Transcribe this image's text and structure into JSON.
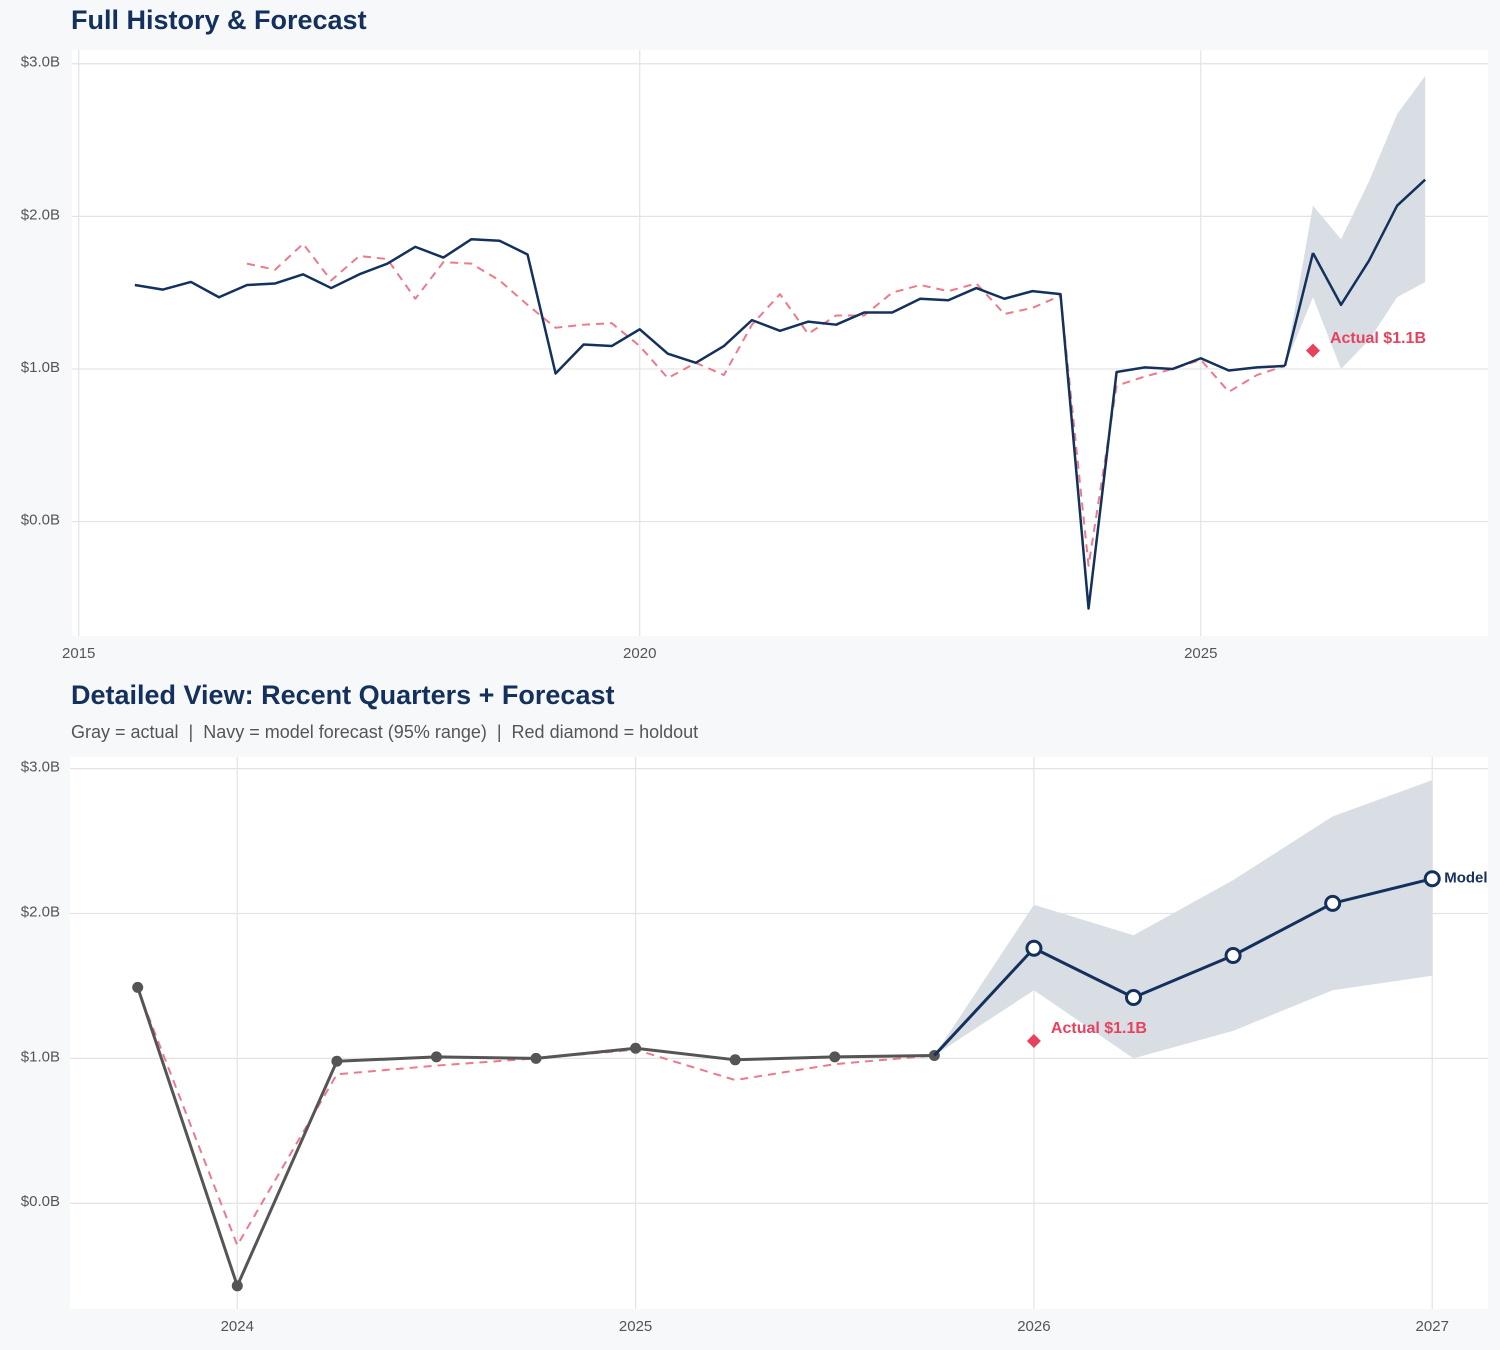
{
  "chart_data": [
    {
      "type": "line",
      "title": "Full History & Forecast",
      "xlim": [
        2014.94,
        2027.56
      ],
      "xticks": [
        2015,
        2020,
        2025
      ],
      "ylim": [
        -0.75,
        3.09
      ],
      "yticks": [
        {
          "value": 0,
          "label": "$0.0B"
        },
        {
          "value": 1,
          "label": "$1.0B"
        },
        {
          "value": 2,
          "label": "$2.0B"
        },
        {
          "value": 3,
          "label": "$3.0B"
        }
      ],
      "grid": true,
      "band": {
        "color": "#d9dee5",
        "x": [
          2025.75,
          2026,
          2026.25,
          2026.5,
          2026.75,
          2027
        ],
        "lower": [
          1.02,
          1.47,
          1.0,
          1.19,
          1.47,
          1.57
        ],
        "upper": [
          1.02,
          2.07,
          1.85,
          2.23,
          2.67,
          2.92
        ]
      },
      "series": [
        {
          "color": "#ec7a8a",
          "dash": true,
          "x": [
            2016.5,
            2016.75,
            2017,
            2017.25,
            2017.5,
            2017.75,
            2018,
            2018.25,
            2018.5,
            2018.75,
            2019,
            2019.25,
            2019.5,
            2019.75,
            2020,
            2020.25,
            2020.5,
            2020.75,
            2021,
            2021.25,
            2021.5,
            2021.75,
            2022,
            2022.25,
            2022.5,
            2022.75,
            2023,
            2023.25,
            2023.5,
            2023.75,
            2024,
            2024.25,
            2024.5,
            2024.75,
            2025,
            2025.25,
            2025.5,
            2025.75
          ],
          "values": [
            1.69,
            1.65,
            1.82,
            1.58,
            1.74,
            1.72,
            1.46,
            1.7,
            1.69,
            1.58,
            1.42,
            1.27,
            1.29,
            1.3,
            1.15,
            0.94,
            1.04,
            0.96,
            1.29,
            1.49,
            1.23,
            1.35,
            1.35,
            1.5,
            1.55,
            1.51,
            1.56,
            1.36,
            1.4,
            1.48,
            -0.29,
            0.89,
            0.95,
            1.0,
            1.06,
            0.85,
            0.96,
            1.02
          ]
        },
        {
          "color": "#13315c",
          "x": [
            2015.5,
            2015.75,
            2016,
            2016.25,
            2016.5,
            2016.75,
            2017,
            2017.25,
            2017.5,
            2017.75,
            2018,
            2018.25,
            2018.5,
            2018.75,
            2019,
            2019.25,
            2019.5,
            2019.75,
            2020,
            2020.25,
            2020.5,
            2020.75,
            2021,
            2021.25,
            2021.5,
            2021.75,
            2022,
            2022.25,
            2022.5,
            2022.75,
            2023,
            2023.25,
            2023.5,
            2023.75,
            2024,
            2024.25,
            2024.5,
            2024.75,
            2025,
            2025.25,
            2025.5,
            2025.75
          ],
          "values": [
            1.55,
            1.52,
            1.57,
            1.47,
            1.55,
            1.56,
            1.62,
            1.53,
            1.62,
            1.69,
            1.8,
            1.73,
            1.85,
            1.84,
            1.75,
            0.97,
            1.16,
            1.15,
            1.26,
            1.1,
            1.04,
            1.15,
            1.32,
            1.25,
            1.31,
            1.29,
            1.37,
            1.37,
            1.46,
            1.45,
            1.53,
            1.46,
            1.51,
            1.49,
            -0.57,
            0.98,
            1.01,
            1.0,
            1.07,
            0.99,
            1.01,
            1.02
          ]
        },
        {
          "color": "#13315c",
          "joins_previous": true,
          "x": [
            2026,
            2026.25,
            2026.5,
            2026.75,
            2027
          ],
          "values": [
            1.76,
            1.42,
            1.71,
            2.07,
            2.24
          ]
        }
      ],
      "holdout": {
        "color": "#e8415e",
        "x": 2026,
        "value": 1.12,
        "value_label": "Actual $1.1B"
      }
    },
    {
      "type": "line",
      "title": "Detailed View: Recent Quarters + Forecast",
      "subtitle": "Gray = actual  |  Navy = model forecast (95% range)  |  Red diamond = holdout",
      "xlim": [
        2023.58,
        2027.14
      ],
      "xticks": [
        2024,
        2025,
        2026,
        2027
      ],
      "ylim": [
        -0.73,
        3.08
      ],
      "yticks": [
        {
          "value": 0,
          "label": "$0.0B"
        },
        {
          "value": 1,
          "label": "$1.0B"
        },
        {
          "value": 2,
          "label": "$2.0B"
        },
        {
          "value": 3,
          "label": "$3.0B"
        }
      ],
      "grid": true,
      "band": {
        "color": "#d9dee5",
        "x": [
          2025.75,
          2026,
          2026.25,
          2026.5,
          2026.75,
          2027
        ],
        "lower": [
          1.02,
          1.47,
          1.0,
          1.19,
          1.47,
          1.57
        ],
        "upper": [
          1.02,
          2.06,
          1.85,
          2.23,
          2.67,
          2.92
        ]
      },
      "series": [
        {
          "color": "#ec7a8a",
          "dash": true,
          "x": [
            2023.75,
            2024,
            2024.25,
            2024.5,
            2024.75,
            2025,
            2025.25,
            2025.5,
            2025.75
          ],
          "values": [
            1.48,
            -0.29,
            0.89,
            0.95,
            1.0,
            1.06,
            0.85,
            0.96,
            1.02
          ]
        },
        {
          "color": "#555555",
          "markers": "dot",
          "x": [
            2023.75,
            2024,
            2024.25,
            2024.5,
            2024.75,
            2025,
            2025.25,
            2025.5,
            2025.75
          ],
          "values": [
            1.49,
            -0.57,
            0.98,
            1.01,
            1.0,
            1.07,
            0.99,
            1.01,
            1.02
          ]
        },
        {
          "name": "Model",
          "color": "#13315c",
          "markers": "open",
          "joins_previous": true,
          "x": [
            2026,
            2026.25,
            2026.5,
            2026.75,
            2027
          ],
          "values": [
            1.76,
            1.42,
            1.71,
            2.07,
            2.24
          ]
        }
      ],
      "holdout": {
        "color": "#e8415e",
        "x": 2026,
        "value": 1.12,
        "value_label": "Actual $1.1B"
      }
    }
  ]
}
